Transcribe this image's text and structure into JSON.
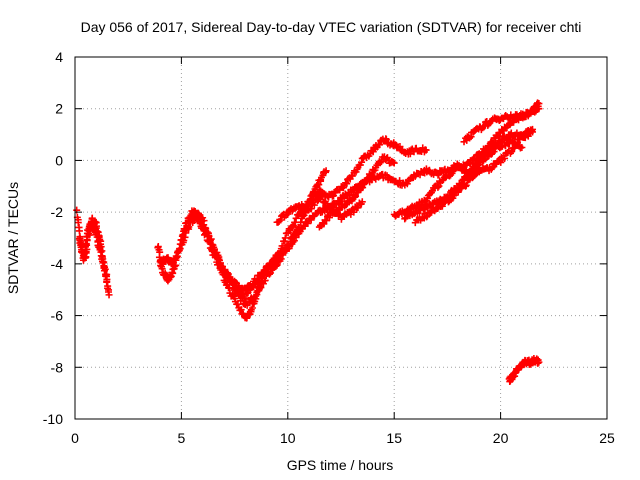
{
  "chart_data": {
    "type": "scatter",
    "title": "Day 056 of 2017, Sidereal Day-to-day VTEC variation (SDTVAR) for receiver chti",
    "xlabel": "GPS time / hours",
    "ylabel": "SDTVAR / TECUs",
    "xlim": [
      0,
      25
    ],
    "ylim": [
      -10,
      4
    ],
    "xticks": [
      0,
      5,
      10,
      15,
      20,
      25
    ],
    "yticks": [
      -10,
      -8,
      -6,
      -4,
      -2,
      0,
      2,
      4
    ],
    "grid": true,
    "marker": "+",
    "color": "#ff0000",
    "tracks": [
      {
        "name": "t1",
        "x": [
          0.1,
          0.3,
          0.5,
          0.6,
          0.8,
          1.0,
          1.2,
          1.4,
          1.6
        ],
        "y": [
          -2.0,
          -3.5,
          -3.8,
          -2.7,
          -2.3,
          -2.5,
          -3.2,
          -4.3,
          -5.2
        ]
      },
      {
        "name": "t2",
        "x": [
          0.2,
          0.4,
          0.6,
          0.8,
          1.0,
          1.2,
          1.5
        ],
        "y": [
          -3.0,
          -3.8,
          -2.9,
          -2.4,
          -2.8,
          -3.6,
          -4.6
        ]
      },
      {
        "name": "t3",
        "x": [
          3.9,
          4.1,
          4.4,
          4.7,
          5.0,
          5.3,
          5.6,
          6.0,
          6.5,
          7.0,
          7.5,
          8.0,
          8.3,
          8.7,
          9.0
        ],
        "y": [
          -3.3,
          -4.3,
          -4.6,
          -4.1,
          -3.0,
          -2.3,
          -2.0,
          -2.6,
          -3.6,
          -4.6,
          -5.4,
          -6.1,
          -5.8,
          -4.8,
          -4.1
        ]
      },
      {
        "name": "t4",
        "x": [
          4.0,
          4.3,
          4.6,
          5.0,
          5.4,
          5.8,
          6.3,
          6.8,
          7.3,
          7.8,
          8.2,
          8.6,
          9.0,
          9.5,
          10.0,
          10.5,
          11.0,
          11.4,
          11.8
        ],
        "y": [
          -4.0,
          -3.8,
          -4.0,
          -3.3,
          -2.4,
          -2.1,
          -2.9,
          -3.9,
          -4.6,
          -5.0,
          -4.9,
          -4.7,
          -4.2,
          -3.8,
          -3.3,
          -2.6,
          -1.6,
          -0.9,
          -0.4
        ]
      },
      {
        "name": "t5",
        "x": [
          5.5,
          6.0,
          6.5,
          7.0,
          7.5,
          8.0,
          8.5,
          9.0,
          9.5,
          10.0,
          10.5,
          11.0,
          11.5,
          12.0,
          12.5,
          13.0,
          13.5,
          14.0,
          14.5,
          15.0,
          15.5,
          16.0,
          16.5
        ],
        "y": [
          -1.9,
          -2.3,
          -3.4,
          -4.3,
          -4.9,
          -5.3,
          -4.6,
          -4.2,
          -3.7,
          -2.8,
          -2.1,
          -1.6,
          -1.2,
          -1.4,
          -1.1,
          -0.6,
          0.0,
          0.4,
          0.8,
          0.6,
          0.3,
          0.4,
          0.4
        ]
      },
      {
        "name": "t6",
        "x": [
          7.0,
          7.5,
          8.0,
          8.5,
          9.0,
          9.5,
          10.0,
          10.5,
          11.0,
          11.5,
          12.0,
          12.5,
          13.0,
          13.5,
          14.0,
          14.5,
          15.0,
          15.5,
          16.0,
          16.5,
          17.0,
          17.5,
          18.0,
          18.5,
          19.0,
          19.5,
          20.0,
          20.5,
          21.0,
          21.5
        ],
        "y": [
          -4.3,
          -5.0,
          -5.6,
          -5.2,
          -4.5,
          -4.0,
          -3.4,
          -2.8,
          -2.3,
          -2.0,
          -1.8,
          -1.5,
          -1.2,
          -0.9,
          -0.7,
          -0.6,
          -0.8,
          -0.9,
          -0.6,
          -0.4,
          -0.5,
          -0.4,
          -0.2,
          -0.5,
          -0.4,
          -0.3,
          0.0,
          0.4,
          0.9,
          1.1
        ]
      },
      {
        "name": "t7",
        "x": [
          9.5,
          10.0,
          10.5,
          11.0,
          11.5,
          12.0,
          12.5,
          13.0,
          13.5
        ],
        "y": [
          -2.4,
          -2.0,
          -1.7,
          -1.9,
          -1.4,
          -1.8,
          -2.2,
          -2.0,
          -1.6
        ]
      },
      {
        "name": "t8",
        "x": [
          11.5,
          12.0,
          12.5,
          13.0,
          13.5,
          14.0,
          14.5,
          15.0
        ],
        "y": [
          -2.6,
          -2.1,
          -1.8,
          -1.5,
          -1.0,
          -0.4,
          0.1,
          -0.1
        ]
      },
      {
        "name": "t9",
        "x": [
          15.0,
          15.5,
          16.0,
          16.5,
          17.0,
          17.5,
          18.0,
          18.5,
          19.0,
          19.5,
          20.0,
          20.5,
          21.0,
          21.5,
          21.8
        ],
        "y": [
          -2.1,
          -2.0,
          -1.8,
          -1.5,
          -1.0,
          -0.6,
          -0.3,
          -0.1,
          0.2,
          0.6,
          1.1,
          1.5,
          1.7,
          1.9,
          2.2
        ]
      },
      {
        "name": "t10",
        "x": [
          15.5,
          16.0,
          16.5,
          17.0,
          17.5,
          18.0,
          18.5,
          19.0,
          19.5,
          20.0,
          20.5,
          21.0,
          21.5
        ],
        "y": [
          -2.2,
          -2.0,
          -1.8,
          -1.6,
          -1.4,
          -1.0,
          -0.5,
          0.0,
          0.5,
          0.8,
          1.0,
          1.0,
          1.2
        ]
      },
      {
        "name": "t11",
        "x": [
          16.0,
          16.5,
          17.0,
          17.5,
          18.0,
          18.5,
          19.0
        ],
        "y": [
          -2.4,
          -2.1,
          -1.8,
          -1.6,
          -1.2,
          -0.8,
          -0.3
        ]
      },
      {
        "name": "t12",
        "x": [
          18.3,
          18.8,
          19.3,
          19.8,
          20.3,
          20.8,
          21.3,
          21.8
        ],
        "y": [
          0.8,
          1.1,
          1.4,
          1.6,
          1.7,
          1.7,
          1.8,
          2.0
        ]
      },
      {
        "name": "t13",
        "x": [
          18.5,
          19.0,
          19.5,
          20.0,
          20.5,
          21.0
        ],
        "y": [
          -0.6,
          -0.1,
          0.3,
          0.6,
          0.7,
          0.5
        ]
      },
      {
        "name": "t14",
        "x": [
          20.4,
          20.6,
          20.8,
          21.0,
          21.2,
          21.4,
          21.6,
          21.8
        ],
        "y": [
          -8.5,
          -8.3,
          -8.1,
          -7.9,
          -7.8,
          -7.8,
          -7.7,
          -7.8
        ]
      }
    ]
  }
}
